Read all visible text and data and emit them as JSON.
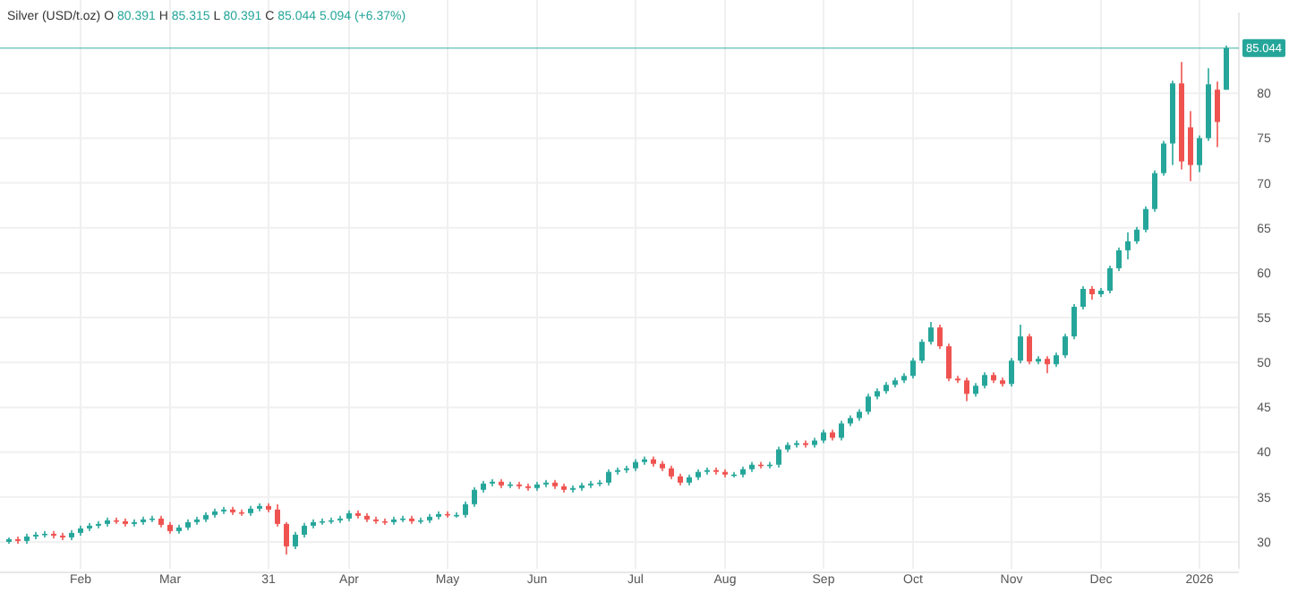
{
  "chart_data": {
    "type": "candlestick",
    "title": "Silver (USD/t.oz) O 80.391 H 85.315 L 80.391 C 85.044 5.094 (+6.37%)",
    "categories": [
      null,
      null,
      null,
      null,
      null,
      null,
      null,
      null,
      "Feb",
      null,
      null,
      null,
      null,
      null,
      null,
      null,
      null,
      null,
      "Mar",
      null,
      null,
      null,
      null,
      null,
      null,
      null,
      null,
      null,
      null,
      "31",
      null,
      null,
      null,
      null,
      null,
      null,
      null,
      null,
      "Apr",
      null,
      null,
      null,
      null,
      null,
      null,
      null,
      null,
      null,
      null,
      "May",
      null,
      null,
      null,
      null,
      null,
      null,
      null,
      null,
      null,
      "Jun",
      null,
      null,
      null,
      null,
      null,
      null,
      null,
      null,
      null,
      null,
      "Jul",
      null,
      null,
      null,
      null,
      null,
      null,
      null,
      null,
      null,
      "Aug",
      null,
      null,
      null,
      null,
      null,
      null,
      null,
      null,
      null,
      null,
      "Sep",
      null,
      null,
      null,
      null,
      null,
      null,
      null,
      null,
      null,
      "Oct",
      null,
      null,
      null,
      null,
      null,
      null,
      null,
      null,
      null,
      null,
      "Nov",
      null,
      null,
      null,
      null,
      null,
      null,
      null,
      null,
      null,
      "Dec",
      null,
      null,
      null,
      null,
      null,
      null,
      null,
      null,
      null,
      null,
      "2026",
      null,
      null,
      null
    ],
    "ohlc": [
      [
        30.0,
        30.5,
        29.8,
        30.3
      ],
      [
        30.3,
        30.6,
        29.8,
        30.1
      ],
      [
        30.1,
        30.9,
        29.8,
        30.6
      ],
      [
        30.6,
        31.1,
        30.3,
        30.8
      ],
      [
        30.8,
        31.2,
        30.5,
        30.9
      ],
      [
        30.9,
        31.2,
        30.4,
        30.7
      ],
      [
        30.7,
        31.0,
        30.2,
        30.5
      ],
      [
        30.5,
        31.3,
        30.2,
        31.0
      ],
      [
        31.0,
        31.8,
        30.7,
        31.5
      ],
      [
        31.5,
        32.1,
        31.2,
        31.8
      ],
      [
        31.8,
        32.3,
        31.5,
        32.0
      ],
      [
        32.0,
        32.7,
        31.7,
        32.4
      ],
      [
        32.4,
        32.7,
        32.0,
        32.3
      ],
      [
        32.3,
        32.6,
        31.7,
        32.0
      ],
      [
        32.0,
        32.5,
        31.7,
        32.2
      ],
      [
        32.2,
        32.8,
        31.9,
        32.5
      ],
      [
        32.5,
        32.9,
        32.2,
        32.6
      ],
      [
        32.6,
        32.9,
        31.6,
        31.9
      ],
      [
        31.9,
        32.2,
        30.9,
        31.2
      ],
      [
        31.2,
        31.9,
        30.9,
        31.6
      ],
      [
        31.6,
        32.5,
        31.3,
        32.2
      ],
      [
        32.2,
        32.8,
        31.9,
        32.5
      ],
      [
        32.5,
        33.3,
        32.2,
        33.0
      ],
      [
        33.0,
        33.7,
        32.7,
        33.4
      ],
      [
        33.4,
        33.9,
        33.1,
        33.6
      ],
      [
        33.6,
        33.9,
        33.0,
        33.3
      ],
      [
        33.3,
        33.6,
        32.9,
        33.2
      ],
      [
        33.2,
        34.0,
        32.9,
        33.7
      ],
      [
        33.7,
        34.3,
        33.4,
        34.0
      ],
      [
        34.0,
        34.3,
        33.3,
        33.6
      ],
      [
        33.6,
        34.2,
        31.7,
        32.0
      ],
      [
        32.0,
        32.2,
        28.6,
        29.5
      ],
      [
        29.5,
        31.1,
        29.2,
        30.8
      ],
      [
        30.8,
        32.1,
        30.5,
        31.8
      ],
      [
        31.8,
        32.5,
        31.5,
        32.2
      ],
      [
        32.2,
        32.6,
        31.9,
        32.3
      ],
      [
        32.3,
        32.7,
        32.0,
        32.4
      ],
      [
        32.4,
        32.9,
        32.1,
        32.6
      ],
      [
        32.6,
        33.5,
        32.3,
        33.2
      ],
      [
        33.2,
        33.5,
        32.6,
        32.9
      ],
      [
        32.9,
        33.2,
        32.2,
        32.5
      ],
      [
        32.5,
        32.8,
        32.0,
        32.3
      ],
      [
        32.3,
        32.6,
        31.9,
        32.2
      ],
      [
        32.2,
        32.8,
        31.9,
        32.5
      ],
      [
        32.5,
        32.9,
        32.2,
        32.6
      ],
      [
        32.6,
        32.9,
        32.0,
        32.3
      ],
      [
        32.3,
        32.7,
        32.0,
        32.4
      ],
      [
        32.4,
        33.1,
        32.1,
        32.8
      ],
      [
        32.8,
        33.4,
        32.5,
        33.1
      ],
      [
        33.1,
        33.4,
        32.7,
        33.0
      ],
      [
        33.0,
        33.3,
        32.7,
        33.0
      ],
      [
        33.0,
        34.5,
        32.7,
        34.2
      ],
      [
        34.2,
        36.1,
        33.9,
        35.8
      ],
      [
        35.8,
        36.8,
        35.5,
        36.5
      ],
      [
        36.5,
        37.0,
        36.2,
        36.7
      ],
      [
        36.7,
        37.0,
        36.0,
        36.3
      ],
      [
        36.3,
        36.7,
        36.0,
        36.4
      ],
      [
        36.4,
        36.7,
        35.9,
        36.2
      ],
      [
        36.2,
        36.5,
        35.7,
        36.0
      ],
      [
        36.0,
        36.7,
        35.7,
        36.4
      ],
      [
        36.4,
        36.9,
        36.1,
        36.6
      ],
      [
        36.6,
        36.9,
        35.9,
        36.2
      ],
      [
        36.2,
        36.5,
        35.5,
        35.8
      ],
      [
        35.8,
        36.3,
        35.5,
        36.0
      ],
      [
        36.0,
        36.6,
        35.7,
        36.3
      ],
      [
        36.3,
        36.8,
        36.0,
        36.5
      ],
      [
        36.5,
        36.9,
        36.2,
        36.6
      ],
      [
        36.6,
        38.1,
        36.3,
        37.8
      ],
      [
        37.8,
        38.3,
        37.5,
        38.0
      ],
      [
        38.0,
        38.5,
        37.7,
        38.2
      ],
      [
        38.2,
        39.2,
        37.9,
        38.9
      ],
      [
        38.9,
        39.5,
        38.6,
        39.2
      ],
      [
        39.2,
        39.5,
        38.4,
        38.7
      ],
      [
        38.7,
        39.0,
        37.9,
        38.2
      ],
      [
        38.2,
        38.5,
        37.0,
        37.3
      ],
      [
        37.3,
        37.6,
        36.3,
        36.6
      ],
      [
        36.6,
        37.5,
        36.3,
        37.2
      ],
      [
        37.2,
        38.1,
        36.9,
        37.8
      ],
      [
        37.8,
        38.3,
        37.5,
        38.0
      ],
      [
        38.0,
        38.3,
        37.5,
        37.8
      ],
      [
        37.8,
        38.1,
        37.2,
        37.5
      ],
      [
        37.5,
        37.8,
        37.2,
        37.5
      ],
      [
        37.5,
        38.4,
        37.2,
        38.1
      ],
      [
        38.1,
        38.9,
        37.8,
        38.6
      ],
      [
        38.6,
        38.9,
        38.2,
        38.5
      ],
      [
        38.5,
        38.9,
        38.2,
        38.6
      ],
      [
        38.6,
        40.6,
        38.3,
        40.3
      ],
      [
        40.3,
        41.1,
        40.0,
        40.8
      ],
      [
        40.8,
        41.3,
        40.5,
        41.0
      ],
      [
        41.0,
        41.3,
        40.5,
        40.8
      ],
      [
        40.8,
        41.6,
        40.5,
        41.3
      ],
      [
        41.3,
        42.5,
        41.0,
        42.2
      ],
      [
        42.2,
        42.5,
        41.3,
        41.6
      ],
      [
        41.6,
        43.5,
        41.3,
        43.2
      ],
      [
        43.2,
        44.1,
        42.9,
        43.8
      ],
      [
        43.8,
        44.8,
        43.5,
        44.5
      ],
      [
        44.5,
        46.5,
        44.2,
        46.2
      ],
      [
        46.2,
        47.1,
        45.9,
        46.8
      ],
      [
        46.8,
        47.8,
        46.5,
        47.5
      ],
      [
        47.5,
        48.3,
        47.2,
        48.0
      ],
      [
        48.0,
        48.8,
        47.7,
        48.5
      ],
      [
        48.5,
        50.5,
        48.2,
        50.2
      ],
      [
        50.2,
        52.6,
        49.9,
        52.3
      ],
      [
        52.3,
        54.5,
        52.0,
        53.9
      ],
      [
        53.9,
        54.2,
        51.5,
        51.8
      ],
      [
        51.8,
        52.1,
        47.9,
        48.2
      ],
      [
        48.2,
        48.5,
        47.7,
        48.0
      ],
      [
        48.0,
        48.3,
        45.7,
        46.5
      ],
      [
        46.5,
        47.7,
        46.2,
        47.4
      ],
      [
        47.4,
        48.9,
        47.1,
        48.6
      ],
      [
        48.6,
        48.9,
        47.7,
        48.0
      ],
      [
        48.0,
        48.3,
        47.3,
        47.6
      ],
      [
        47.6,
        50.5,
        47.3,
        50.2
      ],
      [
        50.2,
        54.2,
        49.9,
        52.9
      ],
      [
        52.9,
        53.2,
        49.8,
        50.1
      ],
      [
        50.1,
        50.7,
        49.8,
        50.4
      ],
      [
        50.4,
        50.7,
        48.8,
        49.8
      ],
      [
        49.8,
        51.1,
        49.5,
        50.8
      ],
      [
        50.8,
        53.2,
        50.5,
        52.9
      ],
      [
        52.9,
        56.5,
        52.6,
        56.2
      ],
      [
        56.2,
        58.5,
        55.9,
        58.2
      ],
      [
        58.2,
        58.5,
        57.0,
        57.6
      ],
      [
        57.6,
        58.3,
        57.3,
        58.0
      ],
      [
        58.0,
        60.8,
        57.7,
        60.5
      ],
      [
        60.5,
        62.8,
        60.2,
        62.5
      ],
      [
        62.5,
        64.5,
        61.5,
        63.5
      ],
      [
        63.5,
        65.1,
        63.2,
        64.8
      ],
      [
        64.8,
        67.4,
        64.5,
        67.1
      ],
      [
        67.1,
        71.4,
        66.8,
        71.1
      ],
      [
        71.1,
        74.7,
        70.8,
        74.4
      ],
      [
        74.4,
        81.4,
        72.0,
        81.1
      ],
      [
        81.1,
        83.5,
        71.5,
        72.4
      ],
      [
        76.2,
        78.0,
        70.2,
        72.0
      ],
      [
        72.0,
        75.3,
        71.2,
        75.0
      ],
      [
        75.0,
        82.8,
        74.7,
        81.0
      ],
      [
        80.4,
        81.3,
        74.0,
        76.8
      ],
      [
        80.391,
        85.315,
        80.391,
        85.044
      ]
    ],
    "ylim": [
      27,
      89
    ],
    "yticks": [
      30,
      35,
      40,
      45,
      50,
      55,
      60,
      65,
      70,
      75,
      80
    ],
    "grid": true,
    "ref_lines": [
      {
        "axis": "y",
        "value": 85.044,
        "label": "85.044",
        "color": "#26a69a"
      }
    ]
  }
}
